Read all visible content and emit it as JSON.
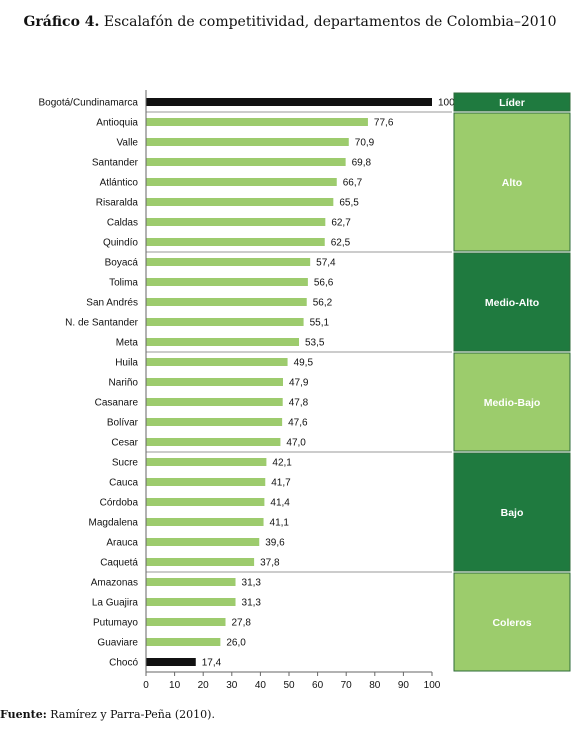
{
  "caption": {
    "label": "Gráfico 4.",
    "text": "Escalafón de competitividad, departamentos de Colombia–2010"
  },
  "source": {
    "label": "Fuente:",
    "text": "Ramírez y Parra-Peña (2010)."
  },
  "chart_data": {
    "type": "bar",
    "orientation": "horizontal",
    "categories": [
      "Bogotá/Cundinamarca",
      "Antioquia",
      "Valle",
      "Santander",
      "Atlántico",
      "Risaralda",
      "Caldas",
      "Quindío",
      "Boyacá",
      "Tolima",
      "San Andrés",
      "N. de Santander",
      "Meta",
      "Huila",
      "Nariño",
      "Casanare",
      "Bolívar",
      "Cesar",
      "Sucre",
      "Cauca",
      "Córdoba",
      "Magdalena",
      "Arauca",
      "Caquetá",
      "Amazonas",
      "La Guajira",
      "Putumayo",
      "Guaviare",
      "Chocó"
    ],
    "values": [
      100,
      77.6,
      70.9,
      69.8,
      66.7,
      65.5,
      62.7,
      62.5,
      57.4,
      56.6,
      56.2,
      55.1,
      53.5,
      49.5,
      47.9,
      47.8,
      47.6,
      47.0,
      42.1,
      41.7,
      41.4,
      41.1,
      39.6,
      37.8,
      31.3,
      31.3,
      27.8,
      26.0,
      17.4
    ],
    "value_labels": [
      "100",
      "77,6",
      "70,9",
      "69,8",
      "66,7",
      "65,5",
      "62,7",
      "62,5",
      "57,4",
      "56,6",
      "56,2",
      "55,1",
      "53,5",
      "49,5",
      "47,9",
      "47,8",
      "47,6",
      "47,0",
      "42,1",
      "41,7",
      "41,4",
      "41,1",
      "39,6",
      "37,8",
      "31,3",
      "31,3",
      "27,8",
      "26,0",
      "17,4"
    ],
    "highlight_categories": [
      "Bogotá/Cundinamarca",
      "Chocó"
    ],
    "xlim": [
      0,
      100
    ],
    "xticks": [
      0,
      10,
      20,
      30,
      40,
      50,
      60,
      70,
      80,
      90,
      100
    ],
    "groups": [
      {
        "label": "Líder",
        "count": 1,
        "shade": "dark"
      },
      {
        "label": "Alto",
        "count": 7,
        "shade": "light"
      },
      {
        "label": "Medio-Alto",
        "count": 5,
        "shade": "dark"
      },
      {
        "label": "Medio-Bajo",
        "count": 5,
        "shade": "light"
      },
      {
        "label": "Bajo",
        "count": 6,
        "shade": "dark"
      },
      {
        "label": "Coleros",
        "count": 5,
        "shade": "light"
      }
    ],
    "colors": {
      "bar": "#9dcb6d",
      "highlight_bar": "#111111",
      "group_dark": "#1f7a3f",
      "group_light": "#9ccc6c",
      "group_border": "#2e6b3a"
    }
  }
}
